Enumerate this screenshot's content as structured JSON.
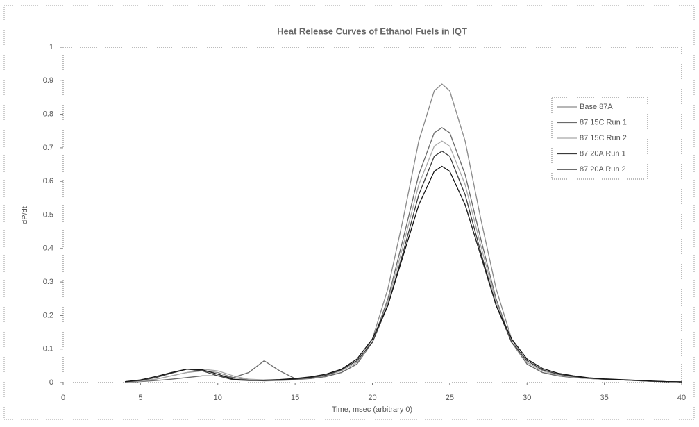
{
  "chart_data": {
    "type": "line",
    "title": "Heat Release Curves of Ethanol Fuels in IQT",
    "x_label": "Time, msec (arbitrary 0)",
    "y_label": "dP/dt",
    "x": [
      4,
      5,
      6,
      7,
      8,
      9,
      10,
      11,
      12,
      13,
      14,
      15,
      16,
      17,
      18,
      19,
      20,
      21,
      22,
      23,
      24,
      24.5,
      25,
      26,
      27,
      28,
      29,
      30,
      31,
      32,
      33,
      34,
      35,
      36,
      37,
      38,
      39,
      40
    ],
    "series": [
      {
        "name": "Base 87A",
        "color": "#8a8a8a",
        "values": [
          0.0,
          0.005,
          0.01,
          0.02,
          0.03,
          0.035,
          0.03,
          0.015,
          0.008,
          0.005,
          0.006,
          0.008,
          0.012,
          0.018,
          0.03,
          0.055,
          0.13,
          0.28,
          0.49,
          0.72,
          0.87,
          0.89,
          0.87,
          0.72,
          0.49,
          0.28,
          0.13,
          0.055,
          0.03,
          0.02,
          0.015,
          0.012,
          0.01,
          0.008,
          0.006,
          0.004,
          0.003,
          0.002
        ]
      },
      {
        "name": "87 15C Run 1",
        "color": "#6a6a6a",
        "values": [
          0.0,
          0.003,
          0.006,
          0.01,
          0.015,
          0.02,
          0.02,
          0.015,
          0.03,
          0.065,
          0.035,
          0.012,
          0.012,
          0.018,
          0.03,
          0.055,
          0.12,
          0.25,
          0.43,
          0.62,
          0.745,
          0.76,
          0.745,
          0.62,
          0.43,
          0.25,
          0.12,
          0.055,
          0.03,
          0.02,
          0.015,
          0.012,
          0.01,
          0.008,
          0.006,
          0.004,
          0.003,
          0.002
        ]
      },
      {
        "name": "87 15C Run 2",
        "color": "#a8a8a8",
        "values": [
          0.0,
          0.004,
          0.01,
          0.02,
          0.03,
          0.04,
          0.035,
          0.02,
          0.01,
          0.008,
          0.008,
          0.01,
          0.014,
          0.02,
          0.035,
          0.06,
          0.12,
          0.24,
          0.41,
          0.59,
          0.705,
          0.72,
          0.705,
          0.59,
          0.41,
          0.24,
          0.12,
          0.06,
          0.035,
          0.022,
          0.016,
          0.012,
          0.01,
          0.008,
          0.006,
          0.004,
          0.003,
          0.002
        ]
      },
      {
        "name": "87 20A Run 1",
        "color": "#3a3a3a",
        "values": [
          0.002,
          0.006,
          0.015,
          0.028,
          0.04,
          0.035,
          0.02,
          0.008,
          0.006,
          0.006,
          0.008,
          0.01,
          0.015,
          0.022,
          0.038,
          0.065,
          0.12,
          0.23,
          0.39,
          0.56,
          0.675,
          0.69,
          0.675,
          0.56,
          0.39,
          0.23,
          0.12,
          0.065,
          0.038,
          0.025,
          0.018,
          0.013,
          0.01,
          0.008,
          0.006,
          0.004,
          0.003,
          0.002
        ]
      },
      {
        "name": "87 20A Run 2",
        "color": "#151515",
        "values": [
          0.003,
          0.008,
          0.018,
          0.03,
          0.04,
          0.038,
          0.025,
          0.01,
          0.007,
          0.007,
          0.009,
          0.012,
          0.017,
          0.025,
          0.04,
          0.07,
          0.13,
          0.23,
          0.38,
          0.53,
          0.63,
          0.645,
          0.63,
          0.53,
          0.38,
          0.23,
          0.13,
          0.07,
          0.042,
          0.028,
          0.02,
          0.014,
          0.011,
          0.009,
          0.007,
          0.005,
          0.003,
          0.002
        ]
      }
    ],
    "xlim": [
      0,
      40
    ],
    "xticks": [
      0,
      5,
      10,
      15,
      20,
      25,
      30,
      35,
      40
    ],
    "ylim": [
      0,
      1
    ],
    "yticks": [
      0,
      0.1,
      0.2,
      0.3,
      0.4,
      0.5,
      0.6,
      0.7,
      0.8,
      0.9,
      1
    ],
    "legend": "upper right"
  }
}
